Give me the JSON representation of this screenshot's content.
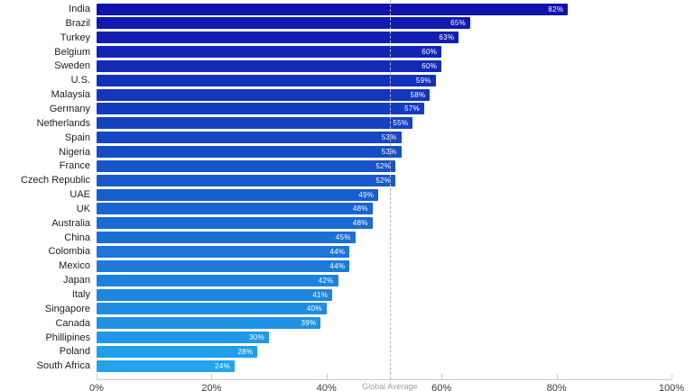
{
  "chart_data": {
    "type": "bar",
    "orientation": "horizontal",
    "title": "",
    "xlabel": "",
    "ylabel": "",
    "categories": [
      "India",
      "Brazil",
      "Turkey",
      "Belgium",
      "Sweden",
      "U.S.",
      "Malaysia",
      "Germany",
      "Netherlands",
      "Spain",
      "Nigeria",
      "France",
      "Czech Republic",
      "UAE",
      "UK",
      "Australia",
      "China",
      "Colombia",
      "Mexico",
      "Japan",
      "Italy",
      "Singapore",
      "Canada",
      "Phillipines",
      "Poland",
      "South Africa"
    ],
    "values": [
      82,
      65,
      63,
      60,
      60,
      59,
      58,
      57,
      55,
      53,
      53,
      52,
      52,
      49,
      48,
      48,
      45,
      44,
      44,
      42,
      41,
      40,
      39,
      30,
      28,
      24
    ],
    "value_labels": [
      "82%",
      "65%",
      "63%",
      "60%",
      "60%",
      "59%",
      "58%",
      "57%",
      "55%",
      "53%",
      "53%",
      "52%",
      "52%",
      "49%",
      "48%",
      "48%",
      "45%",
      "44%",
      "44%",
      "42%",
      "41%",
      "40%",
      "39%",
      "30%",
      "28%",
      "24%"
    ],
    "xlim": [
      0,
      100
    ],
    "x_ticks": [
      "0%",
      "20%",
      "40%",
      "60%",
      "80%",
      "100%"
    ],
    "x_tick_values": [
      0,
      20,
      40,
      60,
      80,
      100
    ],
    "grid": false,
    "reference_line": {
      "label": "Global Average",
      "value": 51
    },
    "colors": {
      "bar_top": "#0e14ad",
      "bar_bottom": "#22a3ec",
      "value_label": "#ffffff",
      "axis": "#c9c9c9",
      "tick_label": "#3a3a3a",
      "reference_line": "#b3b3b3",
      "reference_label": "#9aa1a8",
      "country_label": "#1c1c28"
    }
  }
}
